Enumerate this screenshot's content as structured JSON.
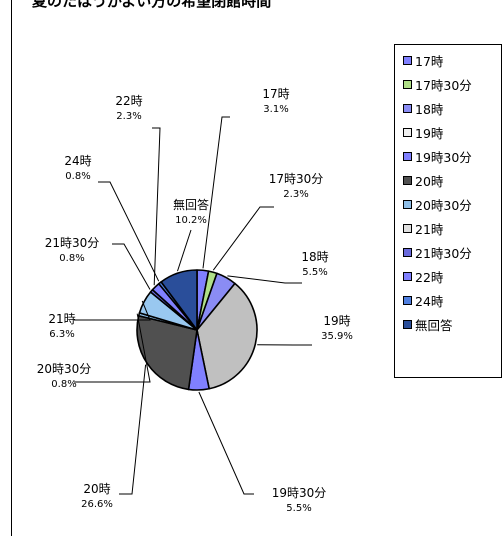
{
  "chart_data": {
    "type": "pie",
    "title": "夏のたはうがよい方の希望閉館時間",
    "slices": [
      {
        "name": "17時",
        "percent_label": "3.1%",
        "value": 3.1,
        "color": "#8080ff"
      },
      {
        "name": "17時30分",
        "percent_label": "2.3%",
        "value": 2.3,
        "color": "#b0e088"
      },
      {
        "name": "18時",
        "percent_label": "5.5%",
        "value": 5.5,
        "color": "#8a8cf4"
      },
      {
        "name": "19時",
        "percent_label": "35.9%",
        "value": 35.9,
        "color": "#c0c0c0"
      },
      {
        "name": "19時30分",
        "percent_label": "5.5%",
        "value": 5.5,
        "color": "#8080ff"
      },
      {
        "name": "20時",
        "percent_label": "26.6%",
        "value": 26.6,
        "color": "#505050"
      },
      {
        "name": "20時30分",
        "percent_label": "0.8%",
        "value": 0.8,
        "color": "#8fbfe8"
      },
      {
        "name": "21時",
        "percent_label": "6.3%",
        "value": 6.3,
        "color": "#99c8f0"
      },
      {
        "name": "21時30分",
        "percent_label": "0.8%",
        "value": 0.8,
        "color": "#6a6adc"
      },
      {
        "name": "22時",
        "percent_label": "2.3%",
        "value": 2.3,
        "color": "#8080ff"
      },
      {
        "name": "24時",
        "percent_label": "0.8%",
        "value": 0.8,
        "color": "#4f7fe0"
      },
      {
        "name": "無回答",
        "percent_label": "10.2%",
        "value": 10.2,
        "color": "#2a4e9a"
      }
    ],
    "legend": {
      "position": "right",
      "items": [
        "17時",
        "17時30分",
        "18時",
        "19時",
        "19時30分",
        "20時",
        "20時30分",
        "21時",
        "21時30分",
        "22時",
        "24時",
        "無回答"
      ],
      "colors": [
        "#8080ff",
        "#b0e088",
        "#8a8cf4",
        "#f0f0f0",
        "#8080ff",
        "#505050",
        "#8fbfe8",
        "#e0e0e0",
        "#6a6adc",
        "#8080ff",
        "#4f7fe0",
        "#2a4e9a"
      ]
    }
  }
}
